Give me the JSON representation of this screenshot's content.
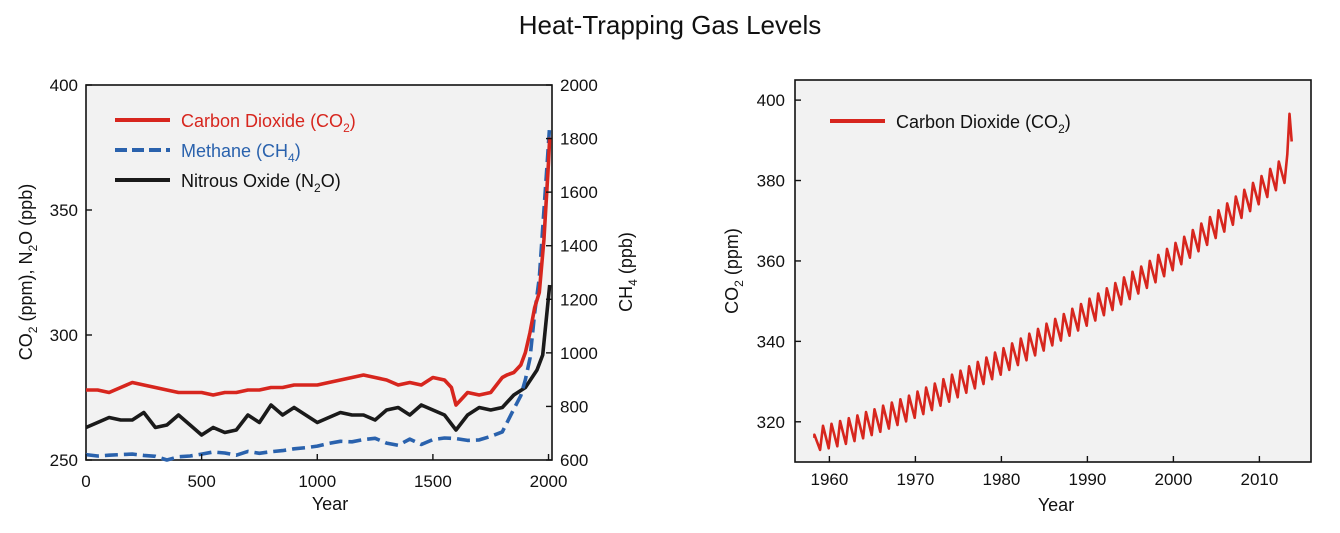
{
  "title": "Heat-Trapping Gas Levels",
  "colors": {
    "co2": "#d7261e",
    "ch4": "#2a62ad",
    "n2o": "#1a1a1a",
    "plot_bg": "#f2f2f2"
  },
  "chart_data": [
    {
      "type": "line",
      "xlabel": "Year",
      "ylabel_left": "CO2 (ppm), N2O (ppb)",
      "ylabel_right": "CH4 (ppb)",
      "xlim": [
        0,
        2015
      ],
      "ylim_left": [
        250,
        400
      ],
      "ylim_right": [
        600,
        2000
      ],
      "xticks": [
        0,
        500,
        1000,
        1500,
        2000
      ],
      "yticks_left": [
        250,
        300,
        350,
        400
      ],
      "yticks_right": [
        600,
        800,
        1000,
        1200,
        1400,
        1600,
        1800,
        2000
      ],
      "legend_position": "top-left",
      "grid": false,
      "series": [
        {
          "name": "Carbon Dioxide (CO2)",
          "axis": "left",
          "style": "solid",
          "color_key": "co2",
          "x": [
            0,
            50,
            100,
            150,
            200,
            250,
            300,
            350,
            400,
            450,
            500,
            550,
            600,
            650,
            700,
            750,
            800,
            850,
            900,
            950,
            1000,
            1050,
            1100,
            1150,
            1200,
            1250,
            1300,
            1350,
            1400,
            1450,
            1500,
            1550,
            1580,
            1600,
            1620,
            1650,
            1700,
            1750,
            1800,
            1820,
            1850,
            1880,
            1900,
            1920,
            1940,
            1960,
            1980,
            2000,
            2005
          ],
          "y": [
            278,
            278,
            277,
            279,
            281,
            280,
            279,
            278,
            277,
            277,
            277,
            276,
            277,
            277,
            278,
            278,
            279,
            279,
            280,
            280,
            280,
            281,
            282,
            283,
            284,
            283,
            282,
            280,
            281,
            280,
            283,
            282,
            279,
            272,
            274,
            277,
            276,
            277,
            283,
            284,
            285,
            288,
            293,
            301,
            311,
            317,
            338,
            369,
            379
          ]
        },
        {
          "name": "Methane (CH4)",
          "axis": "right",
          "style": "dashed",
          "color_key": "ch4",
          "x": [
            0,
            50,
            100,
            150,
            200,
            250,
            300,
            350,
            400,
            450,
            500,
            550,
            600,
            650,
            700,
            750,
            800,
            850,
            900,
            950,
            1000,
            1050,
            1100,
            1150,
            1200,
            1250,
            1300,
            1350,
            1400,
            1450,
            1500,
            1550,
            1600,
            1650,
            1700,
            1750,
            1800,
            1850,
            1880,
            1900,
            1920,
            1940,
            1960,
            1980,
            1995,
            2005
          ],
          "y": [
            620,
            615,
            618,
            620,
            622,
            617,
            614,
            600,
            612,
            615,
            622,
            630,
            626,
            618,
            632,
            625,
            631,
            635,
            642,
            646,
            652,
            662,
            670,
            668,
            676,
            681,
            663,
            655,
            678,
            658,
            676,
            682,
            680,
            673,
            675,
            688,
            705,
            790,
            840,
            900,
            980,
            1150,
            1280,
            1530,
            1720,
            1850
          ]
        },
        {
          "name": "Nitrous Oxide (N2O)",
          "axis": "left",
          "style": "solid",
          "color_key": "n2o",
          "x": [
            0,
            50,
            100,
            150,
            200,
            250,
            300,
            350,
            400,
            450,
            500,
            550,
            600,
            650,
            700,
            750,
            800,
            850,
            900,
            950,
            1000,
            1050,
            1100,
            1150,
            1200,
            1250,
            1300,
            1350,
            1400,
            1450,
            1500,
            1550,
            1600,
            1650,
            1700,
            1750,
            1800,
            1850,
            1900,
            1950,
            1975,
            2005
          ],
          "y": [
            263,
            265,
            267,
            266,
            266,
            269,
            263,
            264,
            268,
            264,
            260,
            263,
            261,
            262,
            268,
            265,
            272,
            268,
            271,
            268,
            265,
            267,
            269,
            268,
            268,
            266,
            270,
            271,
            268,
            272,
            270,
            268,
            262,
            268,
            271,
            270,
            271,
            276,
            279,
            286,
            292,
            320
          ]
        }
      ]
    },
    {
      "type": "line",
      "xlabel": "Year",
      "ylabel": "CO2 (ppm)",
      "xlim": [
        1956,
        2016
      ],
      "ylim": [
        310,
        405
      ],
      "xticks": [
        1960,
        1970,
        1980,
        1990,
        2000,
        2010
      ],
      "yticks": [
        320,
        340,
        360,
        380,
        400
      ],
      "legend_position": "top-left",
      "grid": false,
      "series": [
        {
          "name": "Carbon Dioxide (CO2)",
          "color_key": "co2",
          "seasonal_amplitude_ppm": 3.2,
          "x": [
            1958.25,
            1958.25,
            1958.92,
            1959.25,
            1959.92,
            1960.25,
            1960.92,
            1961.25,
            1961.92,
            1962.25,
            1962.92,
            1963.25,
            1963.92,
            1964.25,
            1964.92,
            1965.25,
            1965.92,
            1966.25,
            1966.92,
            1967.25,
            1967.92,
            1968.25,
            1968.92,
            1969.25,
            1969.92,
            1970.25,
            1970.92,
            1971.25,
            1971.92,
            1972.25,
            1972.92,
            1973.25,
            1973.92,
            1974.25,
            1974.92,
            1975.25,
            1975.92,
            1976.25,
            1976.92,
            1977.25,
            1977.92,
            1978.25,
            1978.92,
            1979.25,
            1979.92,
            1980.25,
            1980.92,
            1981.25,
            1981.92,
            1982.25,
            1982.92,
            1983.25,
            1983.92,
            1984.25,
            1984.92,
            1985.25,
            1985.92,
            1986.25,
            1986.92,
            1987.25,
            1987.92,
            1988.25,
            1988.92,
            1989.25,
            1989.92,
            1990.25,
            1990.92,
            1991.25,
            1991.92,
            1992.25,
            1992.92,
            1993.25,
            1993.92,
            1994.25,
            1994.92,
            1995.25,
            1995.92,
            1996.25,
            1996.92,
            1997.25,
            1997.92,
            1998.25,
            1998.92,
            1999.25,
            1999.92,
            2000.25,
            2000.92,
            2001.25,
            2001.92,
            2002.25,
            2002.92,
            2003.25,
            2003.92,
            2004.25,
            2004.92,
            2005.25,
            2005.92,
            2006.25,
            2006.92,
            2007.25,
            2007.92,
            2008.25,
            2008.92,
            2009.25,
            2009.92,
            2010.25,
            2010.92,
            2011.25,
            2011.92,
            2012.25,
            2012.92,
            2013.25,
            2013.5,
            2013.75
          ],
          "y": [
            316.0,
            316.8,
            313.0,
            319.0,
            313.4,
            319.5,
            313.9,
            320.2,
            314.5,
            320.9,
            315.2,
            321.6,
            315.9,
            322.4,
            316.7,
            323.1,
            317.5,
            324.0,
            318.3,
            324.8,
            319.2,
            325.6,
            320.1,
            326.5,
            321.0,
            327.5,
            321.9,
            328.5,
            322.9,
            329.5,
            324.0,
            330.6,
            325.0,
            331.7,
            326.1,
            332.7,
            327.2,
            333.8,
            328.3,
            334.9,
            329.4,
            336.0,
            330.6,
            337.2,
            331.7,
            338.3,
            332.9,
            339.5,
            334.1,
            340.7,
            335.3,
            341.9,
            336.5,
            343.1,
            337.7,
            344.4,
            339.0,
            345.6,
            340.2,
            346.8,
            341.4,
            348.1,
            342.7,
            349.3,
            343.9,
            350.6,
            345.2,
            351.9,
            346.5,
            353.2,
            347.8,
            354.5,
            349.2,
            355.9,
            350.5,
            357.3,
            351.9,
            358.6,
            353.3,
            360.0,
            354.7,
            361.5,
            356.2,
            363.0,
            357.7,
            364.5,
            359.2,
            366.0,
            360.8,
            367.7,
            362.4,
            369.3,
            364.0,
            370.9,
            365.7,
            372.6,
            367.3,
            374.3,
            369.0,
            376.0,
            370.7,
            377.7,
            372.4,
            379.4,
            374.1,
            381.1,
            375.9,
            382.9,
            377.6,
            384.7,
            379.4,
            386.5,
            396.6,
            389.7
          ]
        }
      ]
    }
  ]
}
